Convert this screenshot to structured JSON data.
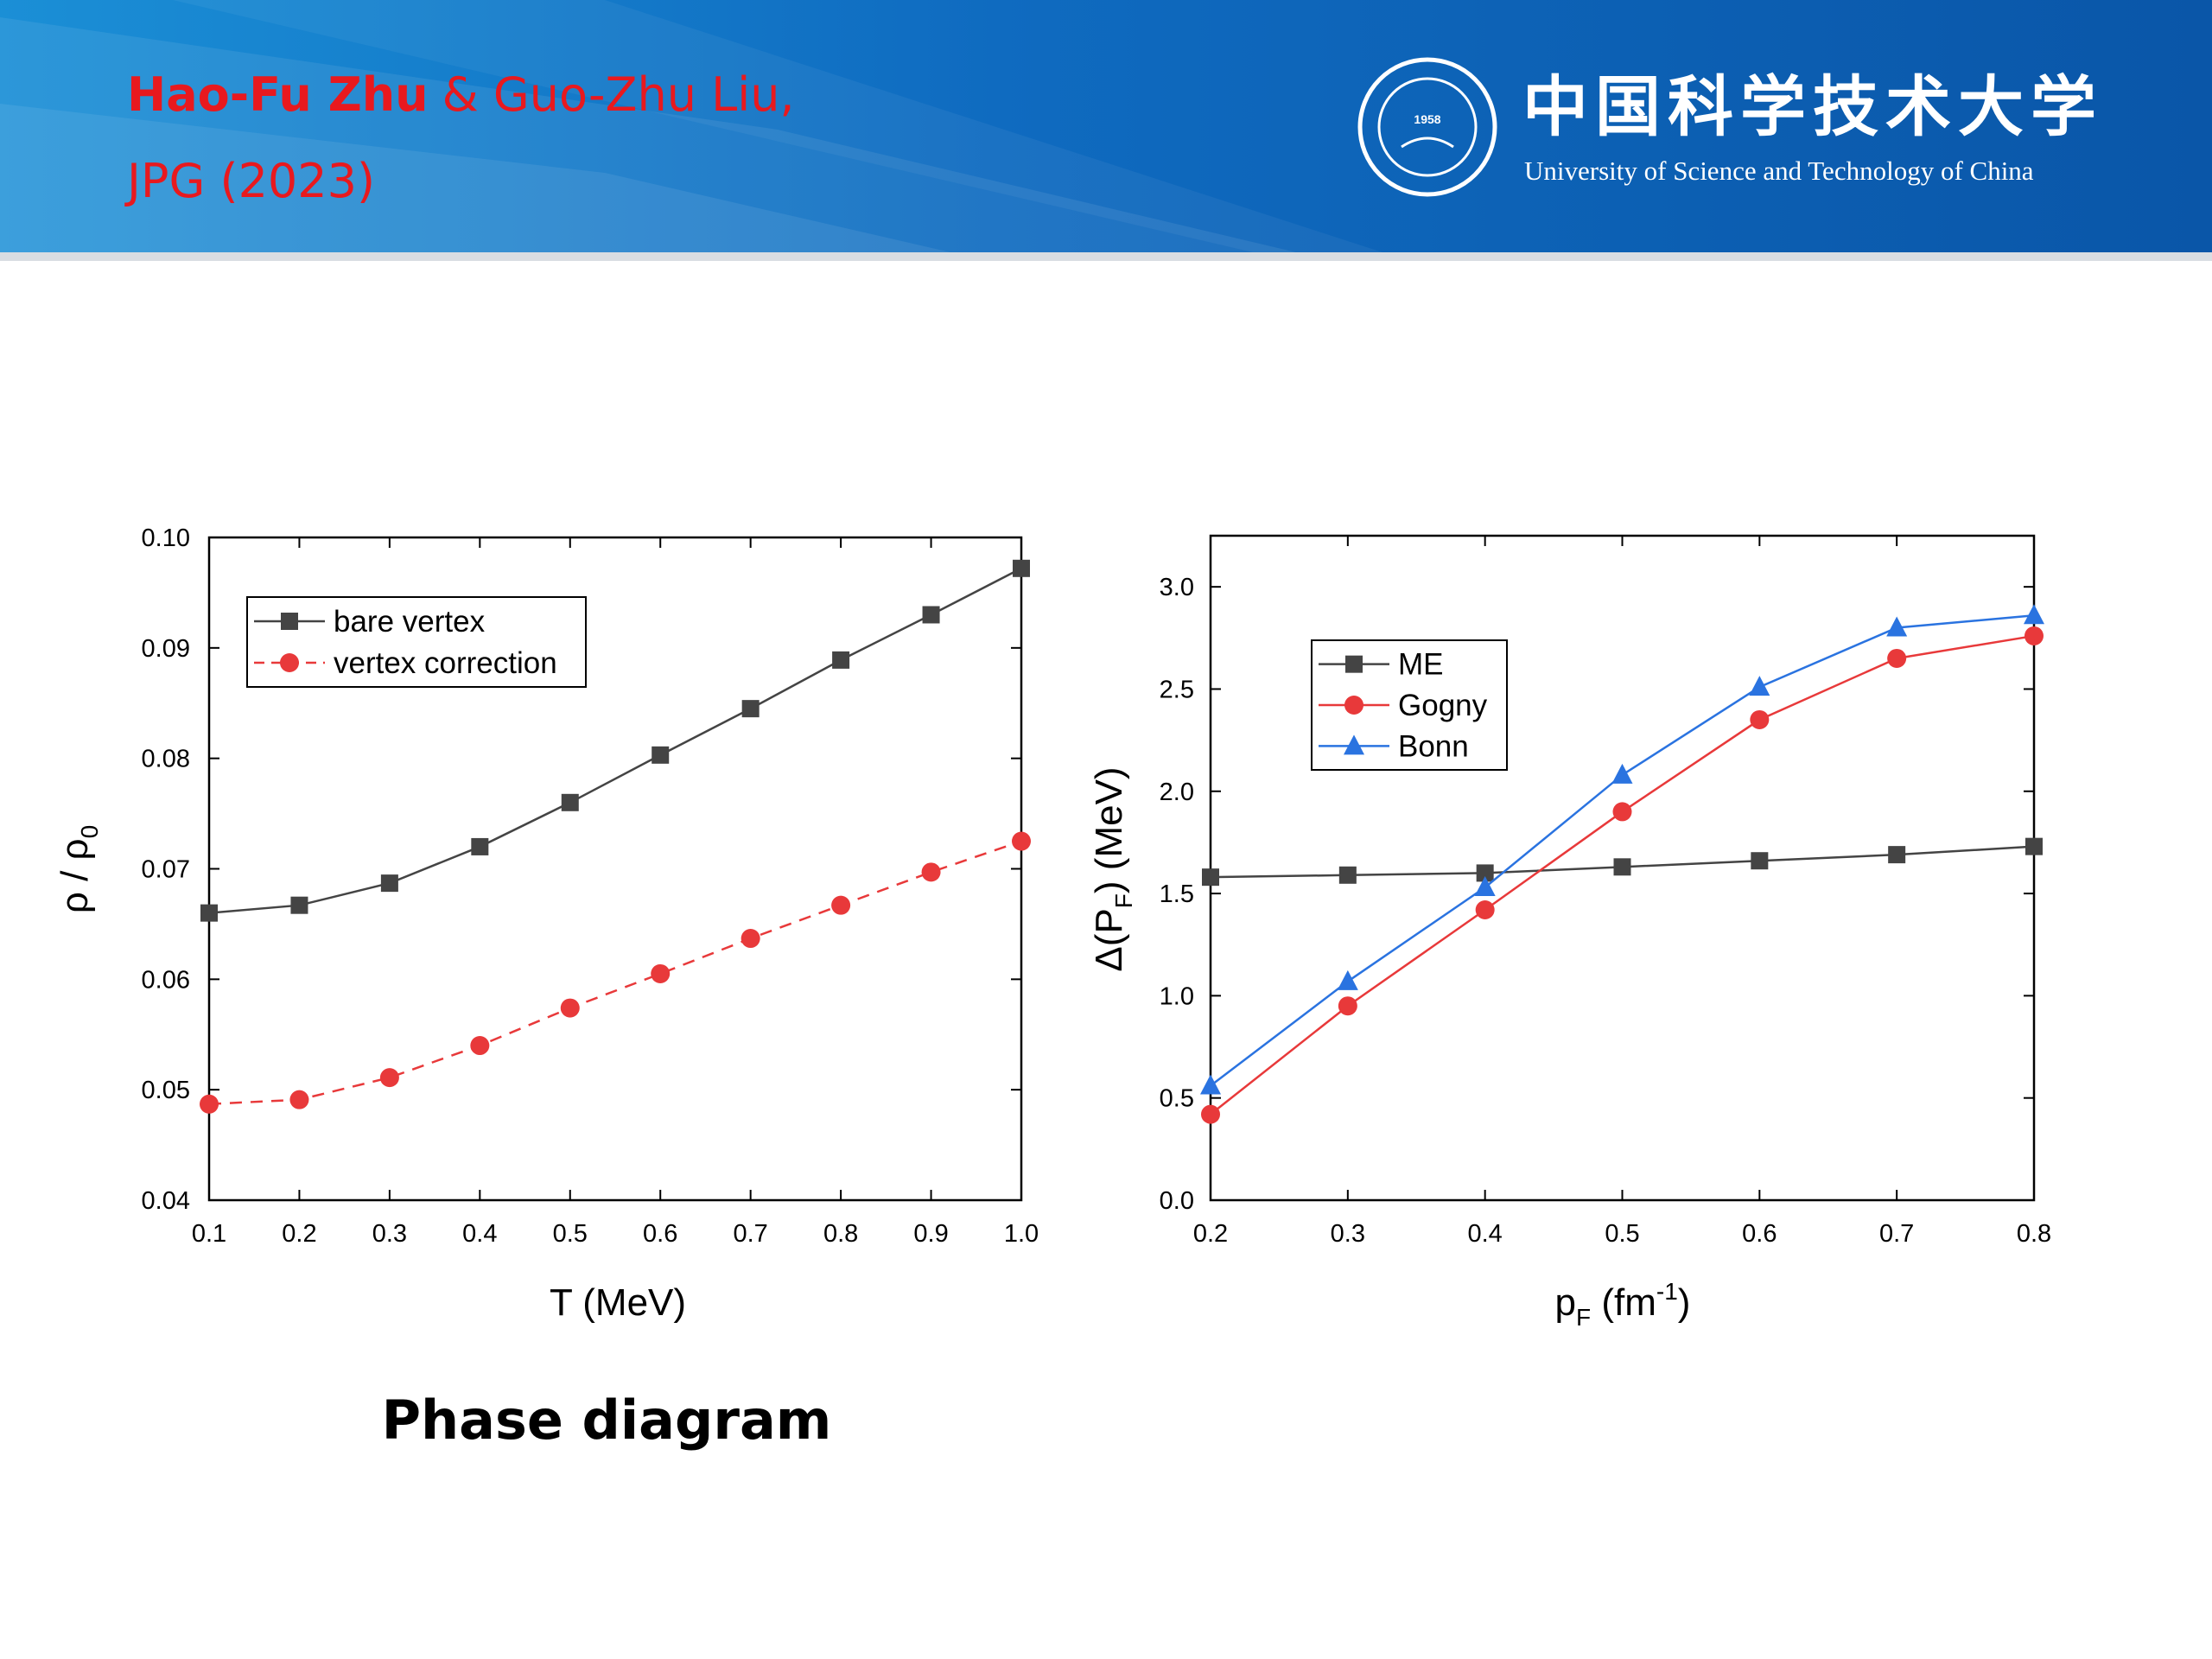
{
  "header": {
    "authors_bold": "Hao-Fu Zhu",
    "authors_rest": "& Guo-Zhu Liu,",
    "citation": "JPG (2023)"
  },
  "logo": {
    "year": "1958",
    "name_cn": "中国科学技术大学",
    "name_en": "University of Science and Technology of China"
  },
  "caption": "Phase diagram",
  "chart_data": [
    {
      "type": "line",
      "xlabel": [
        "T (MeV)"
      ],
      "ylabel": [
        "ρ / ρ",
        "0"
      ],
      "xlim": [
        0.1,
        1.0
      ],
      "xticks": [
        0.1,
        0.2,
        0.3,
        0.4,
        0.5,
        0.6,
        0.7,
        0.8,
        0.9,
        {
          "value": 1.0,
          "label": "1.0"
        }
      ],
      "ylim": [
        0.04,
        0.1
      ],
      "yticks": [
        0.04,
        0.05,
        0.06,
        0.07,
        0.08,
        0.09,
        {
          "value": 0.1,
          "label": "0.10"
        }
      ],
      "legend": "upper left",
      "x": [
        0.1,
        0.2,
        0.3,
        0.4,
        0.5,
        0.6,
        0.7,
        0.8,
        0.9,
        1.0
      ],
      "series": [
        {
          "name": "bare vertex",
          "color": "#444444",
          "marker": "square",
          "linestyle": "solid",
          "values": [
            0.066,
            0.0667,
            0.0687,
            0.072,
            0.076,
            0.0803,
            0.0845,
            0.0889,
            0.093,
            0.0972
          ]
        },
        {
          "name": "vertex correction",
          "color": "#e8393a",
          "marker": "circle",
          "linestyle": "dashed",
          "values": [
            0.0487,
            0.0491,
            0.0511,
            0.054,
            0.0574,
            0.0605,
            0.0637,
            0.0667,
            0.0697,
            0.0725
          ]
        }
      ]
    },
    {
      "type": "line",
      "xlabel": [
        "p",
        "F",
        " (fm",
        "-1",
        ")"
      ],
      "ylabel": [
        "Δ(P",
        "F",
        ") (MeV)"
      ],
      "xlim": [
        0.2,
        0.8
      ],
      "xticks": [
        0.2,
        0.3,
        0.4,
        0.5,
        0.6,
        0.7,
        0.8
      ],
      "ylim": [
        0,
        3.25
      ],
      "yticks": [
        {
          "value": 0,
          "label": "0.0"
        },
        0.5,
        {
          "value": 1.0,
          "label": "1.0"
        },
        1.5,
        {
          "value": 2.0,
          "label": "2.0"
        },
        2.5,
        {
          "value": 3.0,
          "label": "3.0"
        }
      ],
      "legend": "upper left",
      "x": [
        0.2,
        0.3,
        0.4,
        0.5,
        0.6,
        0.7,
        0.8
      ],
      "series": [
        {
          "name": "ME",
          "color": "#444444",
          "marker": "square",
          "linestyle": "solid",
          "values": [
            1.58,
            1.59,
            1.6,
            1.63,
            1.66,
            1.69,
            1.73
          ]
        },
        {
          "name": "Gogny",
          "color": "#e8393a",
          "marker": "circle",
          "linestyle": "solid",
          "values": [
            0.42,
            0.95,
            1.42,
            1.9,
            2.35,
            2.65,
            2.76
          ]
        },
        {
          "name": "Bonn",
          "color": "#2a73e0",
          "marker": "triangle",
          "linestyle": "solid",
          "values": [
            0.56,
            1.07,
            1.53,
            2.08,
            2.51,
            2.8,
            2.86
          ]
        }
      ]
    }
  ]
}
